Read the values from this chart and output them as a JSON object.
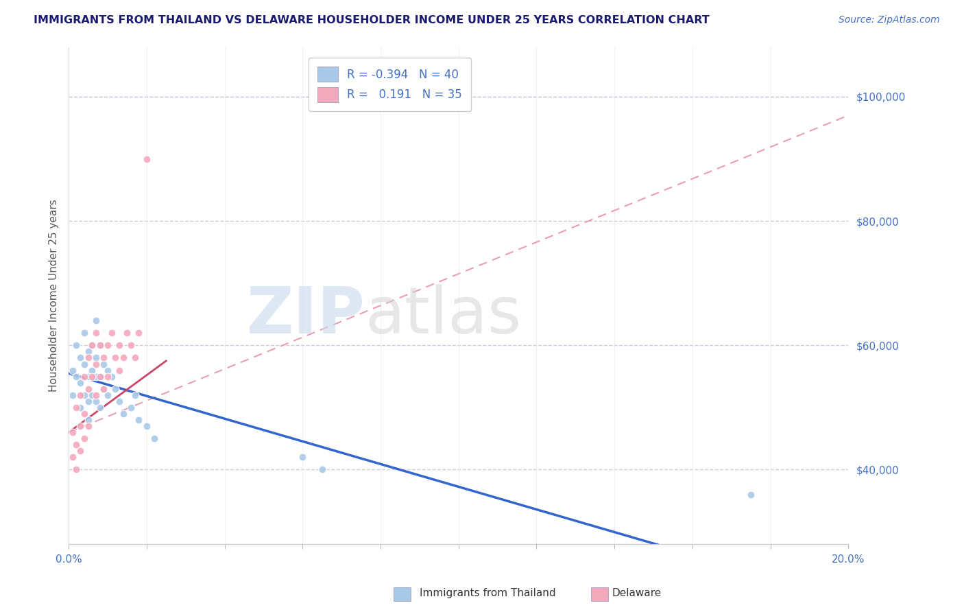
{
  "title": "IMMIGRANTS FROM THAILAND VS DELAWARE HOUSEHOLDER INCOME UNDER 25 YEARS CORRELATION CHART",
  "source": "Source: ZipAtlas.com",
  "ylabel": "Householder Income Under 25 years",
  "xlim": [
    0.0,
    0.2
  ],
  "ylim": [
    28000,
    108000
  ],
  "r_blue": -0.394,
  "n_blue": 40,
  "r_pink": 0.191,
  "n_pink": 35,
  "blue_color": "#a8c8e8",
  "pink_color": "#f4a8bc",
  "blue_line_color": "#3366cc",
  "pink_line_color": "#cc4466",
  "pink_dash_color": "#e8a0b0",
  "grid_color": "#ccccdd",
  "title_color": "#1a1a6e",
  "axis_color": "#4472c4",
  "source_color": "#4472c4",
  "blue_scatter_x": [
    0.001,
    0.001,
    0.002,
    0.002,
    0.003,
    0.003,
    0.003,
    0.004,
    0.004,
    0.004,
    0.005,
    0.005,
    0.005,
    0.005,
    0.006,
    0.006,
    0.006,
    0.007,
    0.007,
    0.007,
    0.007,
    0.008,
    0.008,
    0.008,
    0.009,
    0.009,
    0.01,
    0.01,
    0.011,
    0.012,
    0.013,
    0.014,
    0.016,
    0.017,
    0.018,
    0.02,
    0.022,
    0.06,
    0.065,
    0.175
  ],
  "blue_scatter_y": [
    56000,
    52000,
    60000,
    55000,
    58000,
    54000,
    50000,
    62000,
    57000,
    52000,
    59000,
    55000,
    51000,
    48000,
    60000,
    56000,
    52000,
    64000,
    58000,
    55000,
    51000,
    60000,
    55000,
    50000,
    57000,
    53000,
    56000,
    52000,
    55000,
    53000,
    51000,
    49000,
    50000,
    52000,
    48000,
    47000,
    45000,
    42000,
    40000,
    36000
  ],
  "pink_scatter_x": [
    0.001,
    0.001,
    0.002,
    0.002,
    0.002,
    0.003,
    0.003,
    0.003,
    0.004,
    0.004,
    0.004,
    0.005,
    0.005,
    0.005,
    0.006,
    0.006,
    0.007,
    0.007,
    0.007,
    0.008,
    0.008,
    0.009,
    0.009,
    0.01,
    0.01,
    0.011,
    0.012,
    0.013,
    0.013,
    0.014,
    0.015,
    0.016,
    0.017,
    0.018,
    0.02
  ],
  "pink_scatter_y": [
    46000,
    42000,
    50000,
    44000,
    40000,
    52000,
    47000,
    43000,
    55000,
    49000,
    45000,
    58000,
    53000,
    47000,
    60000,
    55000,
    62000,
    57000,
    52000,
    60000,
    55000,
    58000,
    53000,
    60000,
    55000,
    62000,
    58000,
    60000,
    56000,
    58000,
    62000,
    60000,
    58000,
    62000,
    90000
  ],
  "legend_label_blue": "Immigrants from Thailand",
  "legend_label_pink": "Delaware"
}
